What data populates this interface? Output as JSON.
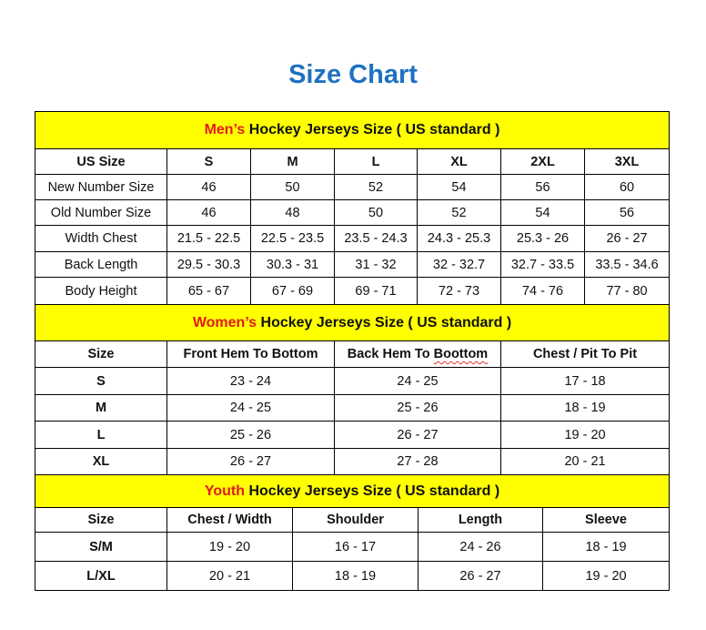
{
  "title": "Size Chart",
  "colors": {
    "title": "#1f72bf",
    "section_bg": "#ffff00",
    "highlight": "#e21b1b"
  },
  "men": {
    "highlight": "Men’s",
    "title_rest": " Hockey Jerseys Size ( US standard )",
    "headers": [
      "US Size",
      "S",
      "M",
      "L",
      "XL",
      "2XL",
      "3XL"
    ],
    "rows": [
      [
        "New Number Size",
        "46",
        "50",
        "52",
        "54",
        "56",
        "60"
      ],
      [
        "Old Number Size",
        "46",
        "48",
        "50",
        "52",
        "54",
        "56"
      ],
      [
        "Width Chest",
        "21.5 - 22.5",
        "22.5 - 23.5",
        "23.5 - 24.3",
        "24.3 - 25.3",
        "25.3 - 26",
        "26 - 27"
      ],
      [
        "Back Length",
        "29.5 - 30.3",
        "30.3 - 31",
        "31 - 32",
        "32 - 32.7",
        "32.7 - 33.5",
        "33.5 - 34.6"
      ],
      [
        "Body Height",
        "65 - 67",
        "67 - 69",
        "69 - 71",
        "72 - 73",
        "74 - 76",
        "77 - 80"
      ]
    ]
  },
  "women": {
    "highlight": "Women’s",
    "title_rest": " Hockey Jerseys Size ( US standard )",
    "headers": [
      "Size",
      "Front Hem To Bottom",
      "Back Hem To Boottom",
      "Chest / Pit To Pit"
    ],
    "rows": [
      [
        "S",
        "23 - 24",
        "24 - 25",
        "17 - 18"
      ],
      [
        "M",
        "24 - 25",
        "25 - 26",
        "18 - 19"
      ],
      [
        "L",
        "25 - 26",
        "26 - 27",
        "19 - 20"
      ],
      [
        "XL",
        "26 - 27",
        "27 - 28",
        "20 - 21"
      ]
    ]
  },
  "youth": {
    "highlight": "Youth",
    "title_rest": " Hockey Jerseys Size ( US standard )",
    "headers": [
      "Size",
      "Chest / Width",
      "Shoulder",
      "Length",
      "Sleeve"
    ],
    "rows": [
      [
        "S/M",
        "19 - 20",
        "16 - 17",
        "24 - 26",
        "18 - 19"
      ],
      [
        "L/XL",
        "20 - 21",
        "18 - 19",
        "26 - 27",
        "19 - 20"
      ]
    ]
  }
}
